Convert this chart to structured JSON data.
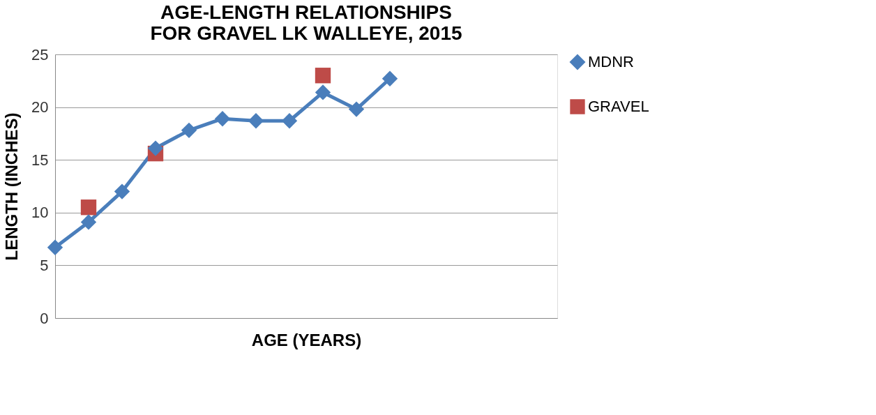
{
  "chart_data": {
    "type": "line",
    "title": [
      "AGE-LENGTH RELATIONSHIPS",
      "FOR GRAVEL LK WALLEYE, 2015"
    ],
    "xlabel": "AGE (YEARS)",
    "ylabel": "LENGTH (INCHES)",
    "categories": [
      null,
      null,
      null,
      null,
      null,
      null,
      null,
      null,
      null,
      null,
      null,
      null,
      null,
      null,
      null,
      null
    ],
    "ylim": [
      0,
      25
    ],
    "yticks": [
      0,
      5,
      10,
      15,
      20,
      25
    ],
    "grid": "y",
    "legend": "right",
    "tick_labels": "y",
    "series": [
      {
        "name": "MDNR",
        "color": "#4a7ebb",
        "marker": "diamond",
        "values": [
          6.7,
          9.1,
          12.0,
          16.1,
          17.8,
          18.9,
          18.7,
          18.7,
          21.4,
          19.8,
          22.7,
          null,
          null,
          null,
          null,
          null
        ]
      },
      {
        "name": "GRAVEL",
        "type": "scatter",
        "color": "#be4b48",
        "marker": "square",
        "values": [
          null,
          10.5,
          null,
          15.6,
          null,
          null,
          null,
          null,
          23.0,
          null,
          null,
          null,
          null,
          null,
          null,
          null
        ]
      }
    ]
  }
}
